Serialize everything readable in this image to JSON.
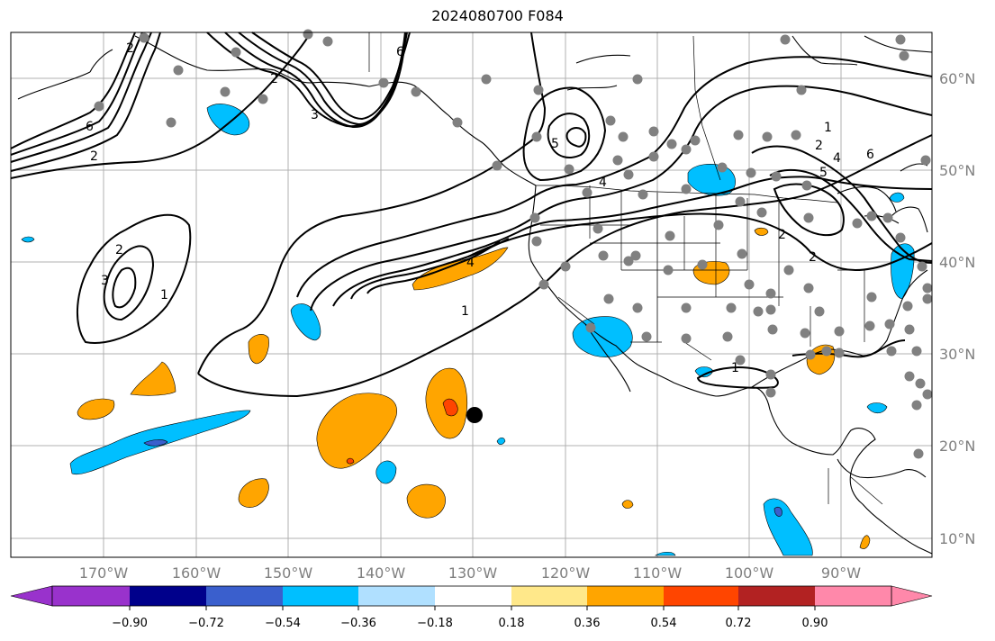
{
  "title": "2024080700 F084",
  "lon_labels": [
    "170°W",
    "160°W",
    "150°W",
    "140°W",
    "130°W",
    "120°W",
    "110°W",
    "100°W",
    "90°W"
  ],
  "lat_labels": [
    "60°N",
    "50°N",
    "40°N",
    "30°N",
    "20°N",
    "10°N"
  ],
  "colorbar": {
    "tick_labels": [
      "−0.90",
      "−0.72",
      "−0.54",
      "−0.36",
      "−0.18",
      "0.18",
      "0.36",
      "0.54",
      "0.72",
      "0.90"
    ],
    "colors": [
      "#9932cc",
      "#00008b",
      "#3a5fcd",
      "#00bfff",
      "#b0e0ff",
      "#ffffff",
      "#ffe88a",
      "#ffa500",
      "#ff4500",
      "#b22222",
      "#ff88aa"
    ]
  },
  "contour_labels": [
    "6",
    "2",
    "6",
    "2",
    "3",
    "2",
    "1",
    "3",
    "2",
    "5",
    "4",
    "1",
    "4",
    "5",
    "2",
    "6",
    "4",
    "1",
    "2",
    "1",
    "2"
  ],
  "colors": {
    "positive_fill": "#ffa500",
    "positive_strong": "#ff4500",
    "negative_fill": "#00bfff",
    "negative_strong": "#3a5fcd",
    "station_dot": "#808080",
    "marker": "#000000",
    "grid": "#b0b0b0"
  }
}
